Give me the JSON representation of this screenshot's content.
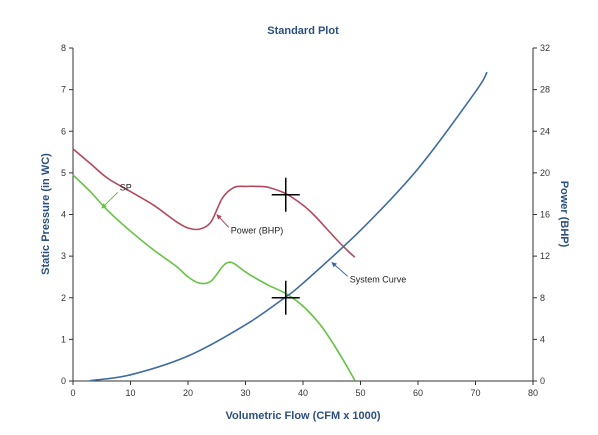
{
  "chart_data": {
    "type": "line",
    "title": "Standard Plot",
    "xlabel": "Volumetric Flow (CFM x 1000)",
    "ylabel": "Static Pressure (in WC)",
    "y2label": "Power (BHP)",
    "xlim": [
      0,
      80
    ],
    "ylim": [
      0,
      8
    ],
    "y2lim": [
      0,
      32
    ],
    "xticks": [
      "0",
      "10",
      "20",
      "30",
      "40",
      "50",
      "60",
      "70",
      "80"
    ],
    "yticks": [
      "0",
      "1",
      "2",
      "3",
      "4",
      "5",
      "6",
      "7",
      "8"
    ],
    "y2ticks": [
      "0",
      "4",
      "8",
      "12",
      "16",
      "20",
      "24",
      "28",
      "32"
    ],
    "grid": false,
    "legend": "none",
    "colors": {
      "sp": "#66c244",
      "power": "#b3495c",
      "system": "#3e6b9f",
      "title": "#2b4f81"
    },
    "series": [
      {
        "name": "SP",
        "axis": "left",
        "x": [
          0,
          3,
          6,
          10,
          14,
          18,
          20,
          22,
          24,
          26,
          27,
          28,
          30,
          32,
          34,
          37,
          40,
          43,
          45,
          47,
          49
        ],
        "y": [
          4.95,
          4.55,
          4.1,
          3.6,
          3.15,
          2.75,
          2.5,
          2.35,
          2.4,
          2.75,
          2.85,
          2.82,
          2.62,
          2.45,
          2.3,
          2.1,
          1.8,
          1.35,
          0.95,
          0.5,
          0.02
        ]
      },
      {
        "name": "Power (BHP)",
        "axis": "right",
        "x": [
          0,
          3,
          6,
          10,
          14,
          18,
          20,
          22,
          24,
          26,
          28,
          30,
          32,
          34,
          37,
          40,
          42,
          44,
          46,
          48,
          49
        ],
        "y": [
          22.3,
          20.9,
          19.5,
          18.2,
          16.9,
          15.3,
          14.7,
          14.6,
          15.3,
          17.6,
          18.6,
          18.7,
          18.7,
          18.6,
          18.0,
          16.9,
          15.9,
          14.7,
          13.5,
          12.4,
          11.9
        ]
      },
      {
        "name": "System Curve",
        "axis": "left",
        "x": [
          3,
          10,
          20,
          30,
          37,
          40,
          50,
          60,
          70,
          72
        ],
        "y": [
          0.01,
          0.15,
          0.6,
          1.35,
          2.02,
          2.35,
          3.62,
          5.1,
          6.95,
          7.42
        ]
      }
    ],
    "operating_points": [
      {
        "x": 37,
        "y": 2.0,
        "axis": "left"
      },
      {
        "x": 37,
        "y": 17.9,
        "axis": "right"
      }
    ],
    "annotations": [
      {
        "label": "SP",
        "target_x": 5,
        "target_y": 4.15,
        "axis": "left"
      },
      {
        "label": "Power (BHP)",
        "target_x": 25,
        "target_y": 16.0,
        "axis": "right"
      },
      {
        "label": "System Curve",
        "target_x": 45,
        "target_y": 2.85,
        "axis": "left"
      }
    ]
  }
}
